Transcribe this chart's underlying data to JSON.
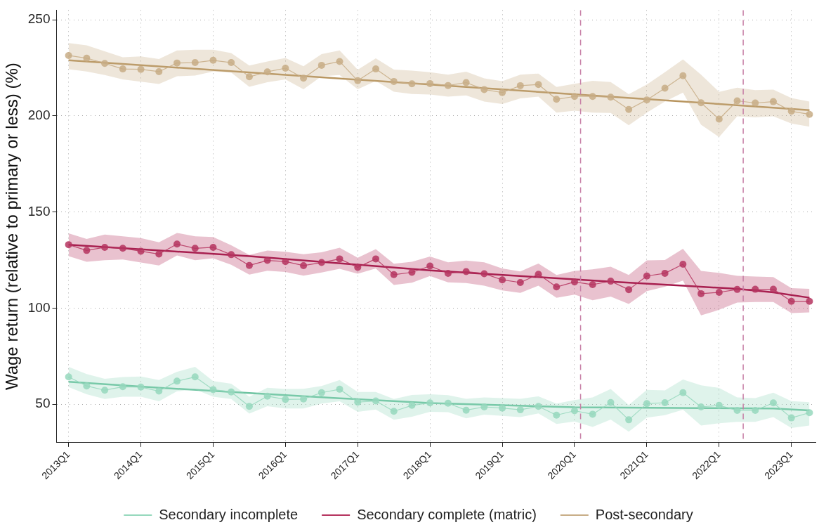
{
  "chart_data": {
    "type": "line",
    "ylabel": "Wage return (relative to primary or less) (%)",
    "x": [
      "2013-01",
      "2013-04",
      "2013-07",
      "2013-10",
      "2014-01",
      "2014-04",
      "2014-07",
      "2014-10",
      "2015-01",
      "2015-04",
      "2015-07",
      "2015-10",
      "2016-01",
      "2016-04",
      "2016-07",
      "2016-10",
      "2017-01",
      "2017-04",
      "2017-07",
      "2017-10",
      "2018-01",
      "2018-04",
      "2018-07",
      "2018-10",
      "2019-01",
      "2019-04",
      "2019-07",
      "2019-10",
      "2020-01",
      "2020-04",
      "2020-07",
      "2020-10",
      "2021-01",
      "2021-04",
      "2021-07",
      "2021-10",
      "2022-01",
      "2022-04",
      "2022-07",
      "2022-10",
      "2023-01",
      "2023-04"
    ],
    "xlim": [
      "2012-11",
      "2023-05"
    ],
    "xticks": [
      {
        "value": "2013-01",
        "label": "2013Q1"
      },
      {
        "value": "2014-01",
        "label": "2014Q1"
      },
      {
        "value": "2015-01",
        "label": "2015Q1"
      },
      {
        "value": "2016-01",
        "label": "2016Q1"
      },
      {
        "value": "2017-01",
        "label": "2017Q1"
      },
      {
        "value": "2018-01",
        "label": "2018Q1"
      },
      {
        "value": "2019-01",
        "label": "2019Q1"
      },
      {
        "value": "2020-01",
        "label": "2020Q1"
      },
      {
        "value": "2021-01",
        "label": "2021Q1"
      },
      {
        "value": "2022-01",
        "label": "2022Q1"
      },
      {
        "value": "2023-01",
        "label": "2023Q1"
      }
    ],
    "ylim": [
      30,
      255
    ],
    "yticks": [
      50,
      100,
      150,
      200,
      250
    ],
    "grid": true,
    "legend": "bottom",
    "series": [
      {
        "name": "Secondary incomplete",
        "color": "#96d8bd",
        "marker": "circle",
        "values": [
          64.2,
          59.5,
          57.3,
          59.1,
          58.9,
          56.8,
          62.0,
          64.2,
          57.6,
          56.4,
          48.9,
          54.2,
          52.5,
          52.7,
          56.0,
          57.8,
          51.1,
          51.7,
          46.3,
          49.4,
          50.7,
          50.5,
          46.9,
          48.6,
          48.0,
          47.1,
          48.9,
          44.3,
          46.6,
          44.8,
          50.9,
          41.9,
          50.3,
          50.8,
          56.0,
          48.6,
          49.4,
          46.8,
          46.8,
          50.7,
          42.9,
          45.6
        ],
        "lower": [
          58.9,
          55.2,
          52.7,
          53.9,
          53.9,
          51.5,
          56.7,
          57.7,
          53.9,
          52.7,
          45.1,
          49.0,
          47.8,
          47.8,
          50.3,
          51.5,
          46.0,
          47.2,
          41.9,
          43.5,
          46.0,
          45.9,
          42.7,
          44.6,
          43.9,
          43.3,
          45.2,
          39.7,
          41.0,
          38.2,
          42.0,
          35.7,
          43.0,
          44.3,
          47.1,
          38.9,
          40.1,
          40.8,
          40.8,
          43.3,
          37.6,
          38.9
        ],
        "upper": [
          69.4,
          65.7,
          63.2,
          64.1,
          64.4,
          62.6,
          66.9,
          69.4,
          62.0,
          60.7,
          53.9,
          58.6,
          57.9,
          58.0,
          59.5,
          62.6,
          56.4,
          56.4,
          52.7,
          54.8,
          55.2,
          54.7,
          52.8,
          53.5,
          53.2,
          52.8,
          54.1,
          50.3,
          52.2,
          53.5,
          57.9,
          49.6,
          57.5,
          57.2,
          62.9,
          59.8,
          58.5,
          53.5,
          53.2,
          56.0,
          51.6,
          51.1
        ]
      },
      {
        "name": "Secondary complete (matric)",
        "color": "#b5345f",
        "marker": "circle",
        "values": [
          133.0,
          130.0,
          131.6,
          131.1,
          129.6,
          128.1,
          133.3,
          131.1,
          131.6,
          127.8,
          122.2,
          124.8,
          124.2,
          122.1,
          123.7,
          125.6,
          121.2,
          125.6,
          117.4,
          118.6,
          121.9,
          118.1,
          119.0,
          117.9,
          114.7,
          113.3,
          117.6,
          111.0,
          113.6,
          112.2,
          114.0,
          109.6,
          116.7,
          118.1,
          122.8,
          107.5,
          108.2,
          109.7,
          109.8,
          109.8,
          103.5,
          103.5
        ],
        "lower": [
          127.0,
          124.1,
          124.9,
          125.3,
          123.7,
          122.2,
          127.4,
          124.9,
          125.9,
          122.5,
          117.4,
          119.4,
          118.8,
          116.9,
          118.5,
          120.4,
          117.9,
          120.6,
          112.0,
          113.2,
          116.7,
          113.4,
          113.0,
          111.7,
          109.2,
          107.9,
          111.7,
          105.4,
          107.0,
          104.1,
          106.0,
          102.2,
          108.8,
          111.1,
          114.3,
          96.2,
          99.1,
          102.9,
          103.2,
          103.2,
          97.4,
          97.8
        ],
        "upper": [
          138.9,
          136.0,
          138.3,
          137.3,
          136.4,
          134.2,
          139.1,
          137.3,
          137.0,
          132.7,
          127.7,
          129.9,
          129.3,
          128.0,
          129.0,
          131.4,
          126.2,
          130.7,
          123.1,
          124.1,
          126.8,
          123.8,
          124.7,
          123.8,
          120.6,
          119.1,
          123.2,
          117.2,
          119.3,
          120.2,
          121.5,
          117.2,
          124.8,
          125.0,
          130.9,
          119.3,
          118.3,
          116.8,
          116.4,
          116.1,
          110.4,
          110.0
        ]
      },
      {
        "name": "Post-secondary",
        "color": "#c8ad86",
        "marker": "circle",
        "values": [
          231.4,
          230.0,
          227.3,
          224.4,
          224.2,
          223.0,
          227.5,
          227.7,
          228.9,
          227.7,
          220.3,
          222.9,
          224.8,
          219.6,
          226.3,
          228.3,
          218.3,
          224.4,
          217.9,
          216.7,
          216.8,
          215.8,
          217.3,
          213.7,
          212.1,
          215.7,
          216.3,
          208.6,
          210.1,
          210.1,
          209.7,
          203.3,
          208.3,
          214.4,
          220.9,
          206.8,
          198.3,
          207.8,
          206.7,
          207.4,
          202.4,
          200.8
        ],
        "lower": [
          224.3,
          223.1,
          221.2,
          219.0,
          217.8,
          216.6,
          220.6,
          221.0,
          223.1,
          222.5,
          215.1,
          217.5,
          219.0,
          213.8,
          220.6,
          221.2,
          213.8,
          218.1,
          212.6,
          211.4,
          211.1,
          210.0,
          210.6,
          207.4,
          206.2,
          209.1,
          210.0,
          201.7,
          202.7,
          201.7,
          201.5,
          195.1,
          201.7,
          207.4,
          212.1,
          195.4,
          189.0,
          199.8,
          199.2,
          199.8,
          196.0,
          194.4
        ],
        "upper": [
          237.9,
          236.7,
          233.6,
          230.5,
          230.9,
          229.6,
          234.0,
          234.4,
          234.4,
          232.7,
          226.2,
          228.3,
          230.1,
          225.8,
          232.1,
          234.0,
          224.0,
          229.9,
          224.1,
          223.5,
          222.7,
          221.4,
          223.0,
          219.5,
          218.0,
          221.4,
          222.0,
          215.0,
          216.7,
          218.2,
          217.6,
          211.3,
          216.3,
          222.7,
          229.4,
          221.4,
          212.5,
          214.7,
          213.4,
          213.7,
          209.3,
          207.4
        ]
      },
      {
        "color": "#6cc3a0",
        "marker": "none",
        "x": [
          "2013-01",
          "2014-04",
          "2015-07",
          "2016-10",
          "2018-01",
          "2020-01",
          "2021-10",
          "2022-10",
          "2023-04"
        ],
        "values": [
          61.7,
          58.6,
          55.8,
          53.1,
          50.6,
          48.4,
          48.0,
          47.8,
          46.8
        ]
      },
      {
        "color": "#a3174a",
        "marker": "none",
        "x": [
          "2013-01",
          "2015-07",
          "2018-01",
          "2020-07",
          "2021-07",
          "2022-04",
          "2022-10",
          "2023-04"
        ],
        "values": [
          133.0,
          127.0,
          119.6,
          113.8,
          111.7,
          110.0,
          108.2,
          105.4
        ]
      },
      {
        "color": "#b8955f",
        "marker": "none",
        "x": [
          "2013-01",
          "2023-04"
        ],
        "values": [
          228.9,
          203.0
        ]
      }
    ],
    "ref_lines": [
      {
        "axis": "x",
        "value": "2020-02",
        "color": "#c77fa6",
        "line_style": "dashed"
      },
      {
        "axis": "x",
        "value": "2022-05",
        "color": "#c77fa6",
        "line_style": "dashed"
      }
    ]
  }
}
